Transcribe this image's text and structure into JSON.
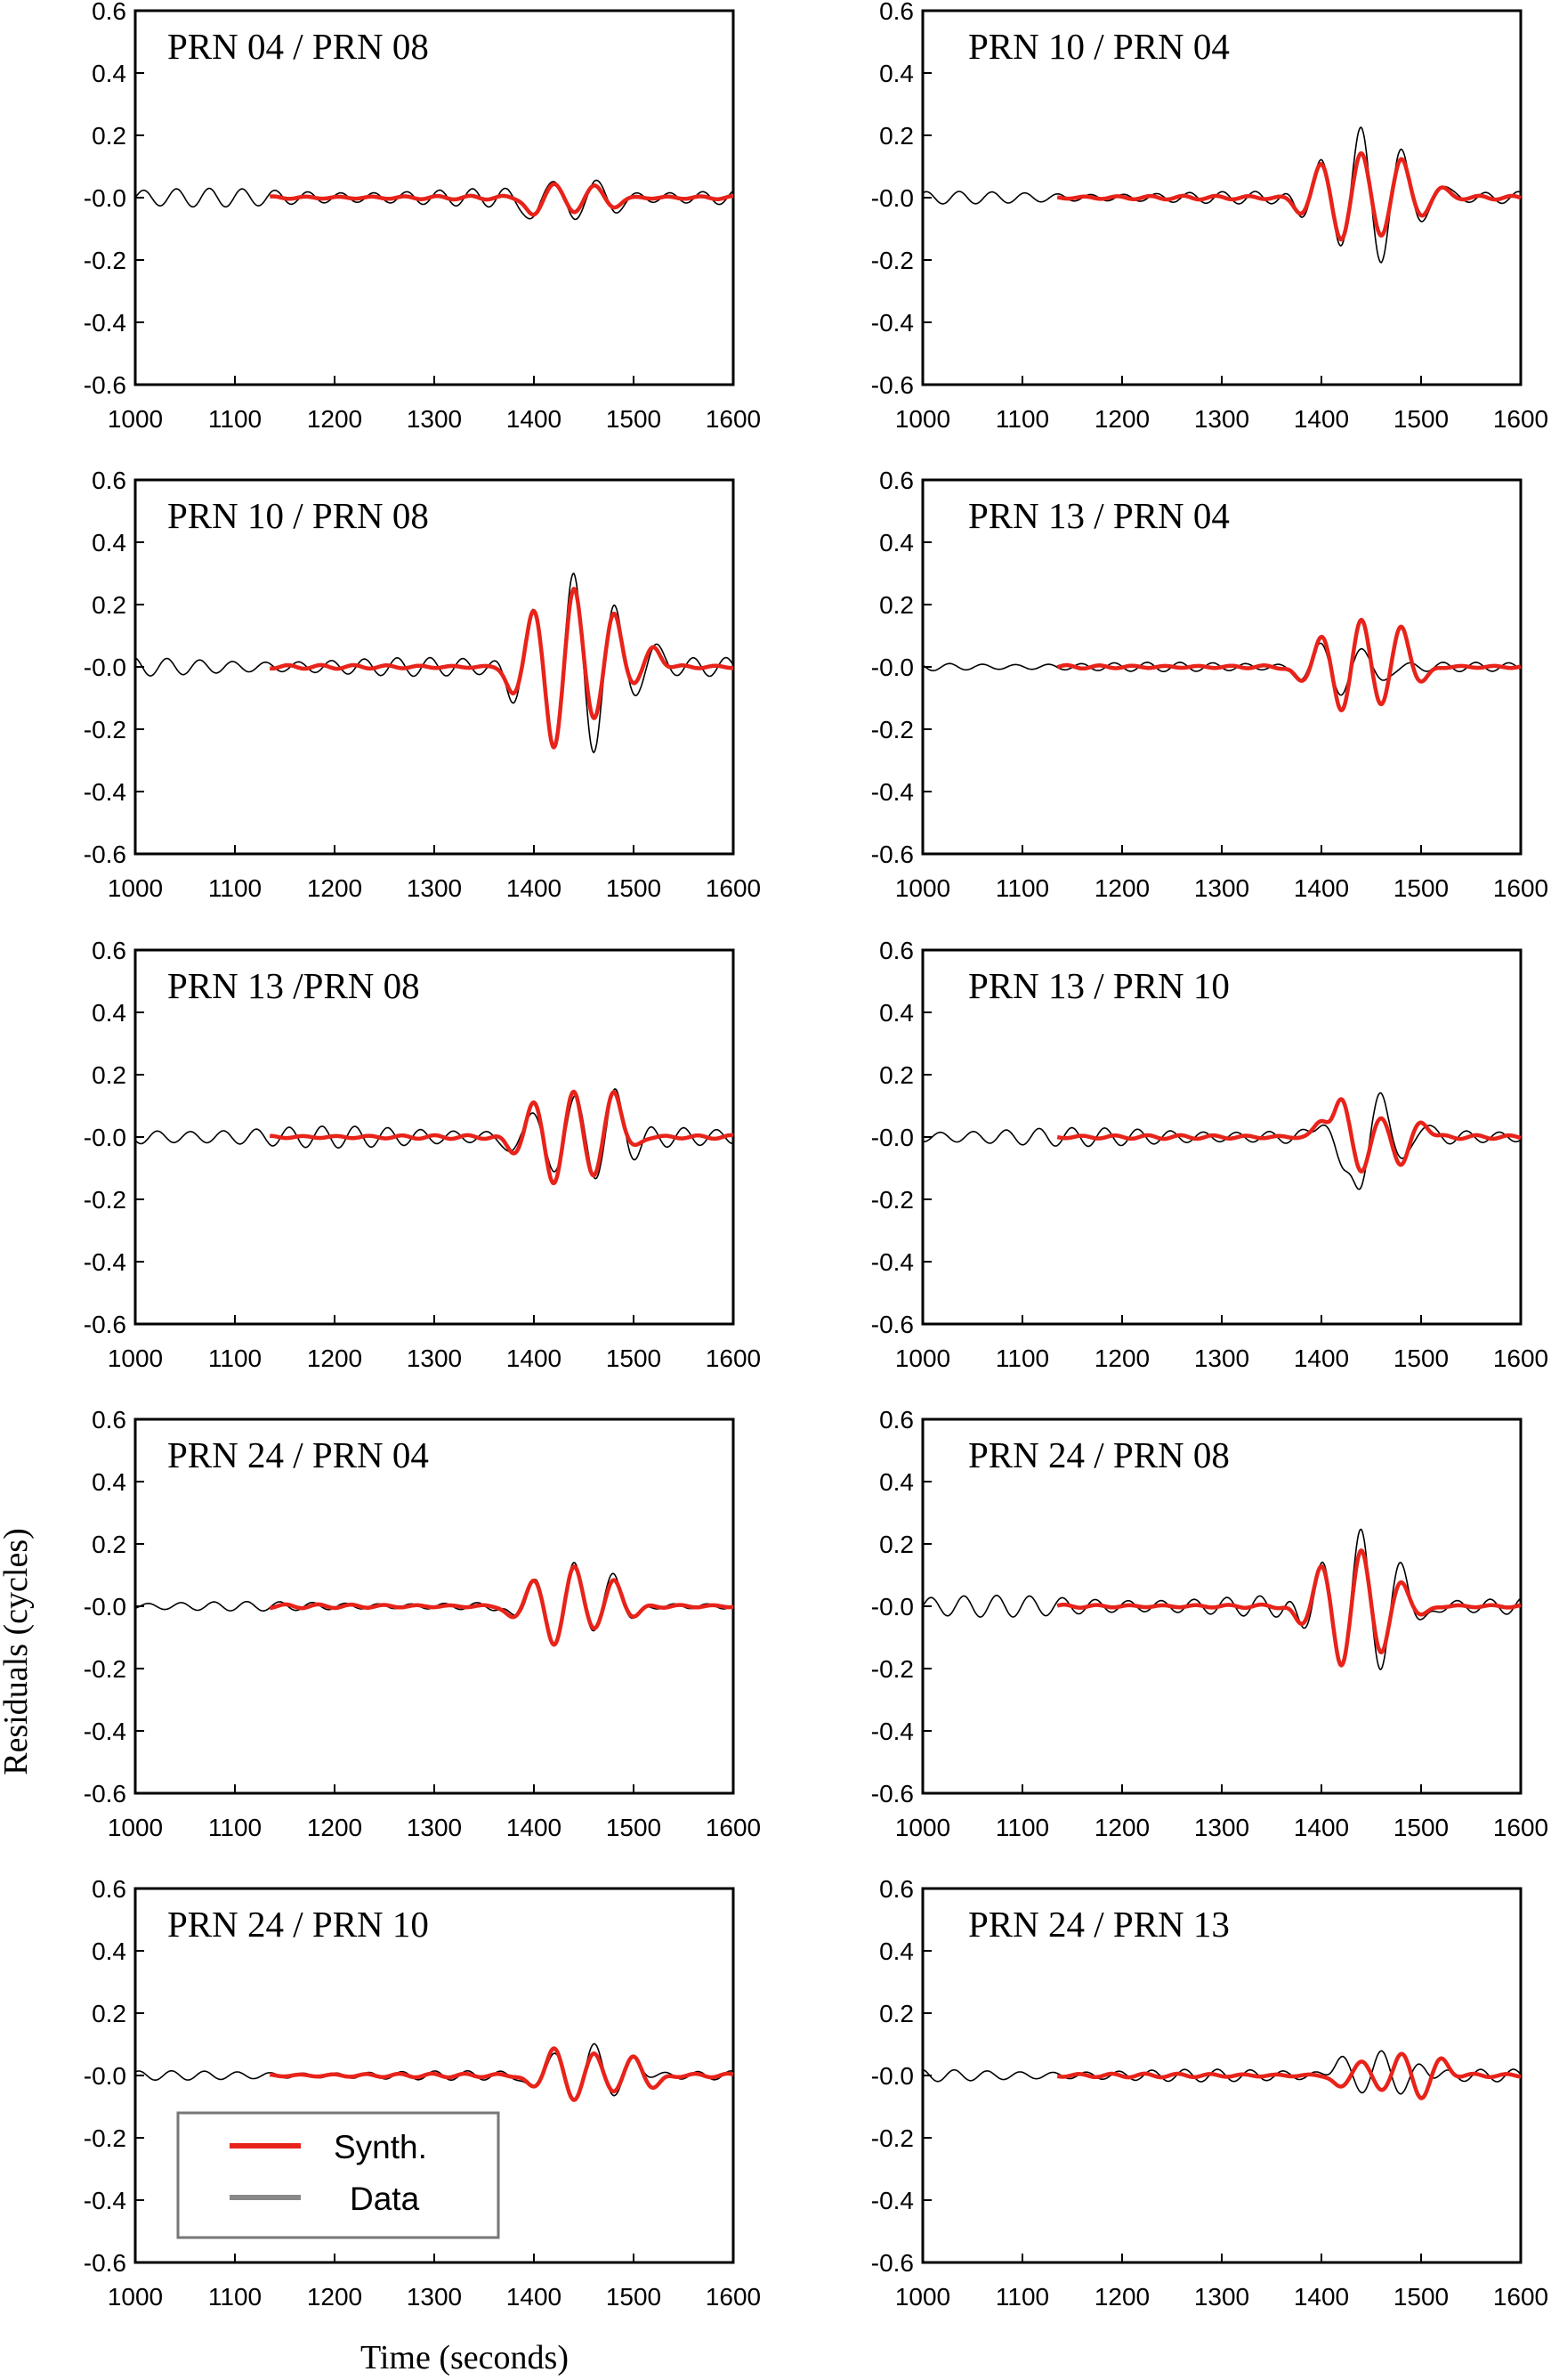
{
  "chart_data": {
    "type": "line",
    "xlabel": "Time (seconds)",
    "ylabel": "Residuals (cycles)",
    "xlim": [
      1000,
      1600
    ],
    "ylim": [
      -0.6,
      0.6
    ],
    "x_ticks": [
      "1000",
      "1100",
      "1200",
      "1300",
      "1400",
      "1500",
      "1600"
    ],
    "y_ticks": [
      "0.6",
      "0.4",
      "0.2",
      "-0.0",
      "-0.2",
      "-0.4",
      "-0.6"
    ],
    "grid": false,
    "legend": {
      "placement": "bottom-left of the PRN 24 / PRN 10 panel",
      "entries": [
        {
          "label": "Synth.",
          "color": "#e8231a"
        },
        {
          "label": "Data",
          "color": "#888888"
        }
      ]
    },
    "series_styles": {
      "Synth.": {
        "color": "#e8231a",
        "x_start": 1135,
        "x_end": 1600
      },
      "Data": {
        "color": "#000000",
        "x_start": 1000,
        "x_end": 1600
      }
    },
    "panels": [
      {
        "title": "PRN 04 / PRN 08",
        "data_noise_amp": 0.03,
        "data": [
          [
            1400,
            -0.08
          ],
          [
            1420,
            0.08
          ],
          [
            1440,
            -0.09
          ],
          [
            1460,
            0.06
          ],
          [
            1480,
            -0.04
          ]
        ],
        "synth": [
          [
            1400,
            -0.06
          ],
          [
            1420,
            0.05
          ],
          [
            1440,
            -0.05
          ],
          [
            1460,
            0.04
          ],
          [
            1480,
            -0.03
          ]
        ]
      },
      {
        "title": "PRN 10 / PRN 04",
        "data_noise_amp": 0.02,
        "data": [
          [
            1380,
            -0.05
          ],
          [
            1400,
            0.11
          ],
          [
            1420,
            -0.15
          ],
          [
            1440,
            0.23
          ],
          [
            1460,
            -0.22
          ],
          [
            1480,
            0.17
          ],
          [
            1500,
            -0.09
          ],
          [
            1520,
            0.04
          ]
        ],
        "synth": [
          [
            1380,
            -0.05
          ],
          [
            1400,
            0.11
          ],
          [
            1420,
            -0.14
          ],
          [
            1440,
            0.15
          ],
          [
            1460,
            -0.13
          ],
          [
            1480,
            0.13
          ],
          [
            1500,
            -0.06
          ],
          [
            1520,
            0.03
          ]
        ]
      },
      {
        "title": "PRN 10 / PRN 08",
        "data_noise_amp": 0.03,
        "data": [
          [
            1380,
            -0.1
          ],
          [
            1400,
            0.18
          ],
          [
            1420,
            -0.27
          ],
          [
            1440,
            0.32
          ],
          [
            1460,
            -0.3
          ],
          [
            1480,
            0.22
          ],
          [
            1500,
            -0.1
          ],
          [
            1520,
            0.06
          ]
        ],
        "synth": [
          [
            1380,
            -0.09
          ],
          [
            1400,
            0.19
          ],
          [
            1420,
            -0.27
          ],
          [
            1440,
            0.26
          ],
          [
            1460,
            -0.17
          ],
          [
            1480,
            0.17
          ],
          [
            1500,
            -0.05
          ],
          [
            1520,
            0.06
          ]
        ]
      },
      {
        "title": "PRN 13 / PRN 04",
        "data_noise_amp": 0.015,
        "data": [
          [
            1380,
            -0.04
          ],
          [
            1400,
            0.08
          ],
          [
            1420,
            -0.1
          ],
          [
            1440,
            0.07
          ],
          [
            1460,
            -0.05
          ]
        ],
        "synth": [
          [
            1380,
            -0.05
          ],
          [
            1400,
            0.1
          ],
          [
            1420,
            -0.14
          ],
          [
            1440,
            0.15
          ],
          [
            1460,
            -0.12
          ],
          [
            1480,
            0.13
          ],
          [
            1500,
            -0.05
          ]
        ]
      },
      {
        "title": "PRN 13 /PRN 08",
        "data_noise_amp": 0.035,
        "data": [
          [
            1380,
            -0.05
          ],
          [
            1400,
            0.1
          ],
          [
            1420,
            -0.14
          ],
          [
            1440,
            0.15
          ],
          [
            1460,
            -0.13
          ],
          [
            1480,
            0.13
          ],
          [
            1500,
            -0.04
          ]
        ],
        "synth": [
          [
            1380,
            -0.05
          ],
          [
            1400,
            0.11
          ],
          [
            1420,
            -0.15
          ],
          [
            1440,
            0.15
          ],
          [
            1460,
            -0.13
          ],
          [
            1480,
            0.15
          ],
          [
            1500,
            -0.03
          ]
        ]
      },
      {
        "title": "PRN 13 / PRN 10",
        "data_noise_amp": 0.03,
        "data": [
          [
            1400,
            0.06
          ],
          [
            1420,
            -0.1
          ],
          [
            1440,
            -0.17
          ],
          [
            1460,
            0.17
          ],
          [
            1480,
            -0.1
          ],
          [
            1500,
            0.04
          ]
        ],
        "synth": [
          [
            1400,
            0.05
          ],
          [
            1420,
            0.12
          ],
          [
            1440,
            -0.11
          ],
          [
            1460,
            0.06
          ],
          [
            1480,
            -0.09
          ],
          [
            1500,
            0.05
          ]
        ]
      },
      {
        "title": "PRN 24 / PRN 04",
        "data_noise_amp": 0.015,
        "data": [
          [
            1380,
            -0.04
          ],
          [
            1400,
            0.09
          ],
          [
            1420,
            -0.12
          ],
          [
            1440,
            0.13
          ],
          [
            1460,
            -0.07
          ],
          [
            1480,
            0.1
          ],
          [
            1500,
            -0.04
          ]
        ],
        "synth": [
          [
            1380,
            -0.04
          ],
          [
            1400,
            0.09
          ],
          [
            1420,
            -0.13
          ],
          [
            1440,
            0.13
          ],
          [
            1460,
            -0.07
          ],
          [
            1480,
            0.08
          ],
          [
            1500,
            -0.03
          ]
        ]
      },
      {
        "title": "PRN 24 / PRN 08",
        "data_noise_amp": 0.035,
        "data": [
          [
            1380,
            -0.06
          ],
          [
            1400,
            0.12
          ],
          [
            1420,
            -0.16
          ],
          [
            1440,
            0.23
          ],
          [
            1460,
            -0.2
          ],
          [
            1480,
            0.15
          ],
          [
            1500,
            -0.06
          ]
        ],
        "synth": [
          [
            1380,
            -0.06
          ],
          [
            1400,
            0.13
          ],
          [
            1420,
            -0.19
          ],
          [
            1440,
            0.18
          ],
          [
            1460,
            -0.15
          ],
          [
            1480,
            0.08
          ],
          [
            1500,
            -0.03
          ]
        ]
      },
      {
        "title": "PRN 24 / PRN 10",
        "data_noise_amp": 0.015,
        "data": [
          [
            1400,
            -0.05
          ],
          [
            1420,
            0.08
          ],
          [
            1440,
            -0.08
          ],
          [
            1460,
            0.1
          ],
          [
            1480,
            -0.06
          ],
          [
            1500,
            0.05
          ]
        ],
        "synth": [
          [
            1400,
            -0.04
          ],
          [
            1420,
            0.09
          ],
          [
            1440,
            -0.08
          ],
          [
            1460,
            0.07
          ],
          [
            1480,
            -0.05
          ],
          [
            1500,
            0.06
          ],
          [
            1520,
            -0.04
          ]
        ]
      },
      {
        "title": "PRN 24 / PRN 13",
        "data_noise_amp": 0.02,
        "data": [
          [
            1420,
            0.06
          ],
          [
            1440,
            -0.05
          ],
          [
            1460,
            0.07
          ],
          [
            1480,
            -0.05
          ],
          [
            1500,
            0.03
          ]
        ],
        "synth": [
          [
            1420,
            -0.04
          ],
          [
            1440,
            0.05
          ],
          [
            1460,
            -0.05
          ],
          [
            1480,
            0.07
          ],
          [
            1500,
            -0.07
          ],
          [
            1520,
            0.05
          ]
        ]
      }
    ]
  }
}
